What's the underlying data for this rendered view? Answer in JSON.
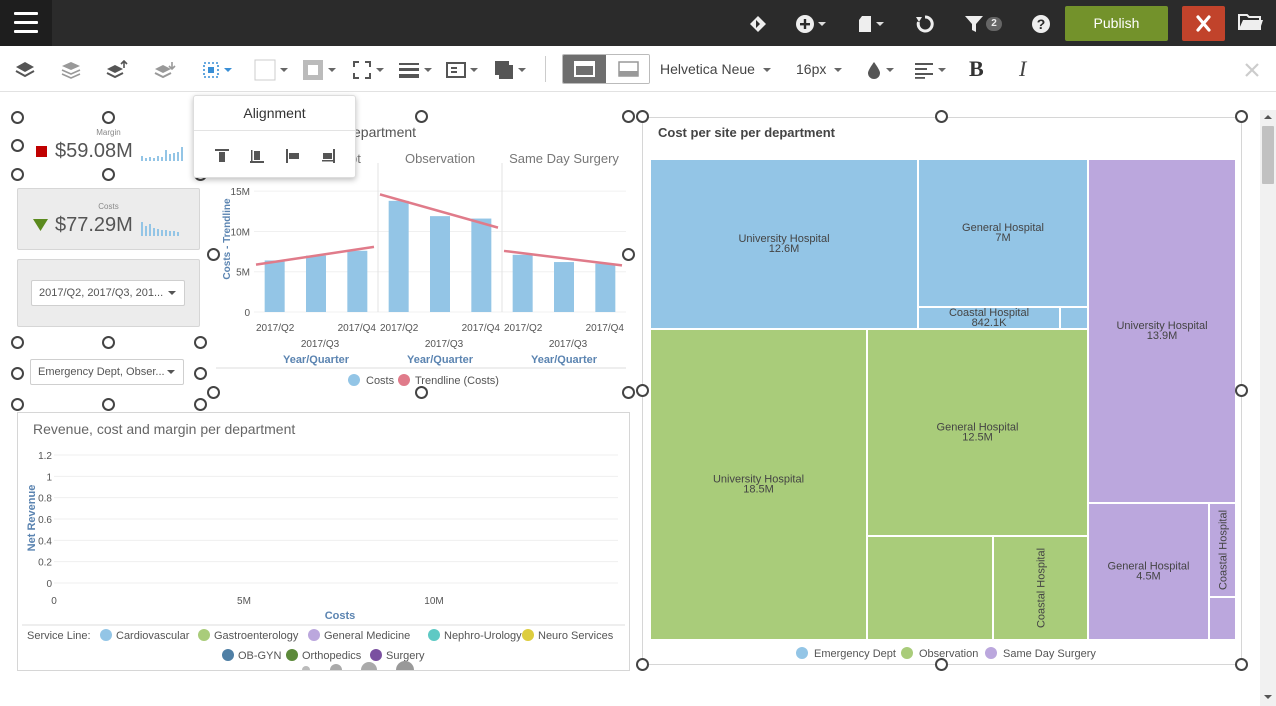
{
  "topbar": {
    "publish_label": "Publish",
    "filter_count": "2",
    "icons": [
      "menu-icon",
      "bookmark-diamond-icon",
      "add-circle-icon",
      "document-icon",
      "refresh-icon",
      "filter-icon",
      "help-icon",
      "close-icon",
      "folder-icon"
    ]
  },
  "toolbar": {
    "font_family": "Helvetica Neue",
    "font_size": "16px",
    "bold_label": "B",
    "italic_label": "I"
  },
  "alignment_popup": {
    "title": "Alignment"
  },
  "kpi_margin": {
    "label": "Margin",
    "value": "$59.08M",
    "indicator_color": "#c00000"
  },
  "kpi_costs": {
    "label": "Costs",
    "value": "$77.29M",
    "indicator_color": "#5b8a1e"
  },
  "filters": {
    "period": "2017/Q2, 2017/Q3, 201...",
    "department": "Emergency Dept, Obser..."
  },
  "bar_chart": {
    "title_visible": "epartment",
    "panel_headers": [
      "pt",
      "Observation",
      "Same Day Surgery"
    ],
    "ylabel": "Costs - Trendline",
    "xlabel": "Year/Quarter",
    "y_ticks": [
      "0",
      "5M",
      "10M",
      "15M"
    ],
    "x_ticks_top": [
      "2017/Q2",
      "2017/Q4"
    ],
    "x_tick_mid": "2017/Q3",
    "legend": [
      {
        "label": "Costs",
        "color": "#93c5e6"
      },
      {
        "label": "Trendline (Costs)",
        "color": "#e07b8a"
      }
    ]
  },
  "chart_data": [
    {
      "type": "bar",
      "title": "",
      "ylabel": "Costs - Trendline",
      "xlabel": "Year/Quarter",
      "ylim": [
        0,
        18
      ],
      "categories": [
        "2017/Q2",
        "2017/Q3",
        "2017/Q4"
      ],
      "series": [
        {
          "name": "Costs",
          "values": [
            6.4,
            7.0,
            7.6
          ]
        },
        {
          "name": "Costs",
          "values": [
            13.8,
            11.9,
            11.6
          ]
        },
        {
          "name": "Costs",
          "values": [
            7.1,
            6.2,
            6.0
          ]
        }
      ],
      "trendline": [
        {
          "name": "Trendline (Costs)",
          "values": [
            6.2,
            7.0,
            7.8
          ]
        },
        {
          "name": "Trendline (Costs)",
          "values": [
            14.0,
            12.5,
            11.0
          ]
        },
        {
          "name": "Trendline (Costs)",
          "values": [
            7.3,
            6.6,
            6.0
          ]
        }
      ],
      "panels": [
        "",
        "Observation",
        "Same Day Surgery"
      ]
    },
    {
      "type": "scatter",
      "title": "Revenue, cost and margin per department",
      "xlabel": "Costs",
      "ylabel": "Net Revenue",
      "x_ticks": [
        "0",
        "5M",
        "10M"
      ],
      "y_ticks": [
        "0",
        "0.2",
        "0.4",
        "0.6",
        "0.8",
        "1",
        "1.2"
      ],
      "legend_title": "Service Line:",
      "legend": [
        {
          "label": "Cardiovascular",
          "color": "#93c5e6"
        },
        {
          "label": "Gastroenterology",
          "color": "#a9cc7a"
        },
        {
          "label": "General Medicine",
          "color": "#bba7dd"
        },
        {
          "label": "Nephro-Urology",
          "color": "#5ec9c4"
        },
        {
          "label": "Neuro Services",
          "color": "#ddcd3e"
        },
        {
          "label": "OB-GYN",
          "color": "#4f7fa5"
        },
        {
          "label": "Orthopedics",
          "color": "#5c8a3a"
        },
        {
          "label": "Surgery",
          "color": "#7a4fa0"
        }
      ],
      "points": []
    },
    {
      "type": "treemap",
      "title": "Cost per site per department",
      "groups": [
        {
          "name": "Emergency Dept",
          "color": "#93c5e6",
          "items": [
            {
              "label": "University Hospital",
              "value_label": "12.6M",
              "value": 12.6
            },
            {
              "label": "General Hospital",
              "value_label": "7M",
              "value": 7.0
            },
            {
              "label": "Coastal Hospital",
              "value_label": "842.1K",
              "value": 0.8421
            }
          ]
        },
        {
          "name": "Observation",
          "color": "#a9cc7a",
          "items": [
            {
              "label": "University Hospital",
              "value_label": "18.5M",
              "value": 18.5
            },
            {
              "label": "General Hospital",
              "value_label": "12.5M",
              "value": 12.5
            },
            {
              "label": "Coastal Hospital",
              "value_label": "",
              "value": null
            }
          ]
        },
        {
          "name": "Same Day Surgery",
          "color": "#bba7dd",
          "items": [
            {
              "label": "University Hospital",
              "value_label": "13.9M",
              "value": 13.9
            },
            {
              "label": "General Hospital",
              "value_label": "4.5M",
              "value": 4.5
            },
            {
              "label": "Coastal Hospital",
              "value_label": "",
              "value": null
            }
          ]
        }
      ]
    }
  ]
}
